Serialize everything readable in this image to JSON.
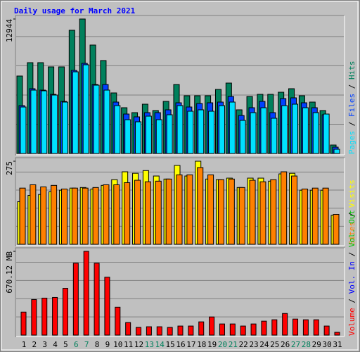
{
  "title": "Daily usage for March 2021",
  "days": [
    {
      "label": "1",
      "weekend": false
    },
    {
      "label": "2",
      "weekend": false
    },
    {
      "label": "3",
      "weekend": false
    },
    {
      "label": "4",
      "weekend": false
    },
    {
      "label": "5",
      "weekend": false
    },
    {
      "label": "6",
      "weekend": true
    },
    {
      "label": "7",
      "weekend": true
    },
    {
      "label": "8",
      "weekend": false
    },
    {
      "label": "9",
      "weekend": false
    },
    {
      "label": "10",
      "weekend": false
    },
    {
      "label": "11",
      "weekend": false
    },
    {
      "label": "12",
      "weekend": false
    },
    {
      "label": "13",
      "weekend": true
    },
    {
      "label": "14",
      "weekend": true
    },
    {
      "label": "15",
      "weekend": false
    },
    {
      "label": "16",
      "weekend": false
    },
    {
      "label": "17",
      "weekend": false
    },
    {
      "label": "18",
      "weekend": false
    },
    {
      "label": "19",
      "weekend": false
    },
    {
      "label": "20",
      "weekend": true
    },
    {
      "label": "21",
      "weekend": true
    },
    {
      "label": "22",
      "weekend": false
    },
    {
      "label": "23",
      "weekend": false
    },
    {
      "label": "24",
      "weekend": false
    },
    {
      "label": "25",
      "weekend": false
    },
    {
      "label": "26",
      "weekend": false
    },
    {
      "label": "27",
      "weekend": true
    },
    {
      "label": "28",
      "weekend": true
    },
    {
      "label": "29",
      "weekend": false
    },
    {
      "label": "30",
      "weekend": false
    },
    {
      "label": "31",
      "weekend": false
    }
  ],
  "weekday_color": "#000000",
  "weekend_color": "#00805c",
  "chart_data": [
    {
      "type": "bar",
      "ylim": [
        0,
        12944
      ],
      "yticks": [
        12944
      ],
      "series": [
        {
          "name": "Hits",
          "color": "#00805c",
          "values": [
            7455,
            8742,
            8742,
            8336,
            8336,
            11860,
            12944,
            10437,
            8946,
            5828,
            4405,
            3931,
            4744,
            4134,
            5015,
            6641,
            5557,
            5557,
            5557,
            6167,
            6777,
            4202,
            5489,
            5693,
            5693,
            5896,
            6235,
            5557,
            4947,
            4134,
            813
          ]
        },
        {
          "name": "Files",
          "color": "#0040ff",
          "values": [
            4608,
            6235,
            6099,
            5693,
            5015,
            7997,
            8675,
            6641,
            6641,
            4947,
            3795,
            3524,
            3931,
            3931,
            4202,
            4879,
            4473,
            4812,
            4879,
            4947,
            5489,
            3660,
            4405,
            5015,
            3931,
            5286,
            5354,
            4879,
            4405,
            3727,
            610
          ]
        },
        {
          "name": "Pages",
          "color": "#00e0ff",
          "values": [
            4473,
            6100,
            6032,
            5625,
            4947,
            7861,
            8539,
            6574,
            6099,
            4608,
            3253,
            3050,
            3592,
            3253,
            3727,
            4608,
            4066,
            4202,
            4066,
            4608,
            4947,
            3185,
            3931,
            4405,
            3389,
            4608,
            4744,
            4405,
            3931,
            3795,
            407
          ]
        }
      ]
    },
    {
      "type": "bar",
      "ylim": [
        0,
        275
      ],
      "yticks": [
        275
      ],
      "series": [
        {
          "name": "Visits",
          "color": "#ffff00",
          "values": [
            141,
            162,
            165,
            174,
            179,
            186,
            188,
            183,
            195,
            214,
            240,
            235,
            244,
            226,
            216,
            261,
            226,
            275,
            216,
            214,
            219,
            188,
            219,
            219,
            209,
            233,
            235,
            179,
            179,
            179,
            96
          ]
        },
        {
          "name": "Sites",
          "color": "#ff8000",
          "values": [
            186,
            197,
            190,
            195,
            183,
            186,
            186,
            188,
            197,
            197,
            204,
            212,
            207,
            209,
            216,
            230,
            230,
            254,
            230,
            214,
            216,
            188,
            212,
            207,
            214,
            240,
            226,
            183,
            186,
            186,
            99
          ]
        }
      ]
    },
    {
      "type": "bar",
      "ylim": [
        0,
        670.12
      ],
      "yticks": [
        {
          "value": 670.12,
          "label": "670.12 MB"
        }
      ],
      "legend_labels": [
        {
          "text": "Vol. In",
          "color": "#0000ff"
        },
        {
          "text": "Vol. Out",
          "color": "#00c000"
        }
      ],
      "series": [
        {
          "name": "Volume",
          "color": "#ff0000",
          "values": [
            184.3,
            284.8,
            296,
            301.5,
            374.1,
            575.2,
            670.12,
            575.2,
            463.5,
            223.4,
            100.5,
            61.4,
            67,
            67,
            61.4,
            72.6,
            72.6,
            106.1,
            145.2,
            89.3,
            89.3,
            72.6,
            89.3,
            111.7,
            122.8,
            173.1,
            128.4,
            122.8,
            122.8,
            72.6,
            22.3
          ]
        }
      ]
    }
  ]
}
